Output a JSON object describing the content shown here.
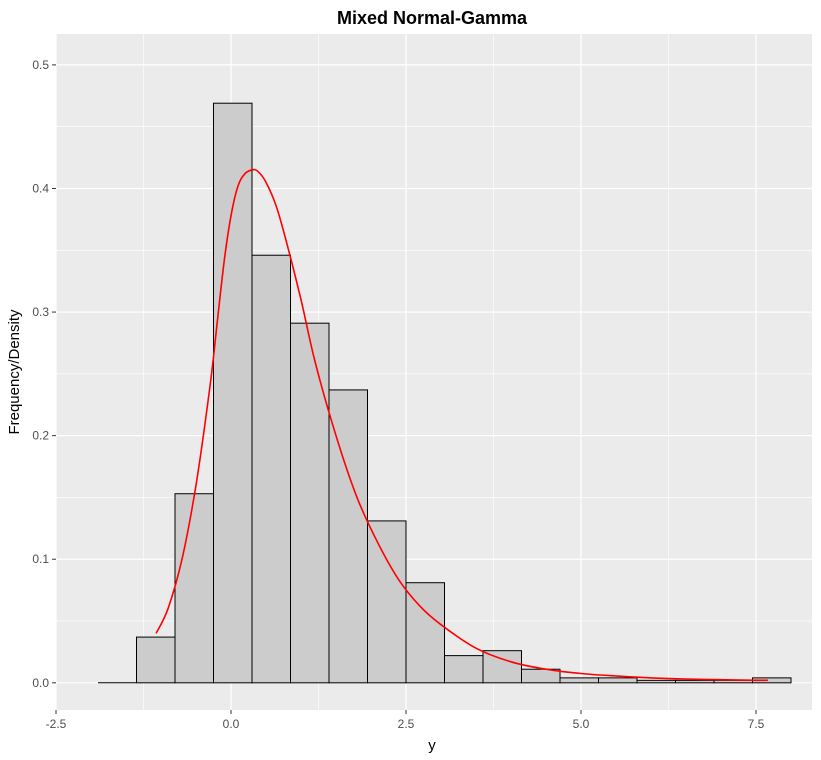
{
  "chart_data": {
    "type": "bar",
    "subtype": "histogram-with-density",
    "title": "Mixed Normal-Gamma",
    "xlabel": "y",
    "ylabel": "Frequency/Density",
    "xlim": [
      -2.5,
      8.3
    ],
    "ylim": [
      -0.022,
      0.525
    ],
    "x_ticks": [
      -2.5,
      0.0,
      2.5,
      5.0,
      7.5
    ],
    "x_tick_labels": [
      "-2.5",
      "0.0",
      "2.5",
      "5.0",
      "7.5"
    ],
    "y_ticks": [
      0.0,
      0.1,
      0.2,
      0.3,
      0.4,
      0.5
    ],
    "y_tick_labels": [
      "0.0",
      "0.1",
      "0.2",
      "0.3",
      "0.4",
      "0.5"
    ],
    "grid": true,
    "panel_color": "#ebebeb",
    "grid_color": "#ffffff",
    "bar_fill": "#cccccc",
    "bar_stroke": "#000000",
    "density_color": "#ff0000",
    "bins": [
      {
        "x0": -1.9,
        "x1": -1.35,
        "value": 0.0
      },
      {
        "x0": -1.35,
        "x1": -0.8,
        "value": 0.037
      },
      {
        "x0": -0.8,
        "x1": -0.25,
        "value": 0.153
      },
      {
        "x0": -0.25,
        "x1": 0.3,
        "value": 0.469
      },
      {
        "x0": 0.3,
        "x1": 0.85,
        "value": 0.346
      },
      {
        "x0": 0.85,
        "x1": 1.4,
        "value": 0.291
      },
      {
        "x0": 1.4,
        "x1": 1.95,
        "value": 0.237
      },
      {
        "x0": 1.95,
        "x1": 2.5,
        "value": 0.131
      },
      {
        "x0": 2.5,
        "x1": 3.05,
        "value": 0.081
      },
      {
        "x0": 3.05,
        "x1": 3.6,
        "value": 0.022
      },
      {
        "x0": 3.6,
        "x1": 4.15,
        "value": 0.026
      },
      {
        "x0": 4.15,
        "x1": 4.7,
        "value": 0.011
      },
      {
        "x0": 4.7,
        "x1": 5.25,
        "value": 0.004
      },
      {
        "x0": 5.25,
        "x1": 5.8,
        "value": 0.004
      },
      {
        "x0": 5.8,
        "x1": 6.35,
        "value": 0.002
      },
      {
        "x0": 6.35,
        "x1": 6.9,
        "value": 0.002
      },
      {
        "x0": 6.9,
        "x1": 7.45,
        "value": 0.002
      },
      {
        "x0": 7.45,
        "x1": 8.0,
        "value": 0.004
      }
    ],
    "density": {
      "x": [
        -1.07,
        -0.9,
        -0.7,
        -0.5,
        -0.3,
        -0.2,
        -0.1,
        0.0,
        0.1,
        0.2,
        0.3,
        0.38,
        0.5,
        0.65,
        0.8,
        1.0,
        1.2,
        1.5,
        1.8,
        2.1,
        2.4,
        2.7,
        3.0,
        3.5,
        4.0,
        4.5,
        5.0,
        5.5,
        6.0,
        6.5,
        7.0,
        7.5,
        7.67
      ],
      "y": [
        0.04,
        0.06,
        0.1,
        0.16,
        0.24,
        0.29,
        0.34,
        0.378,
        0.402,
        0.412,
        0.415,
        0.414,
        0.405,
        0.385,
        0.355,
        0.31,
        0.26,
        0.2,
        0.15,
        0.113,
        0.083,
        0.062,
        0.047,
        0.028,
        0.017,
        0.011,
        0.0075,
        0.0055,
        0.004,
        0.003,
        0.0025,
        0.002,
        0.002
      ]
    }
  }
}
